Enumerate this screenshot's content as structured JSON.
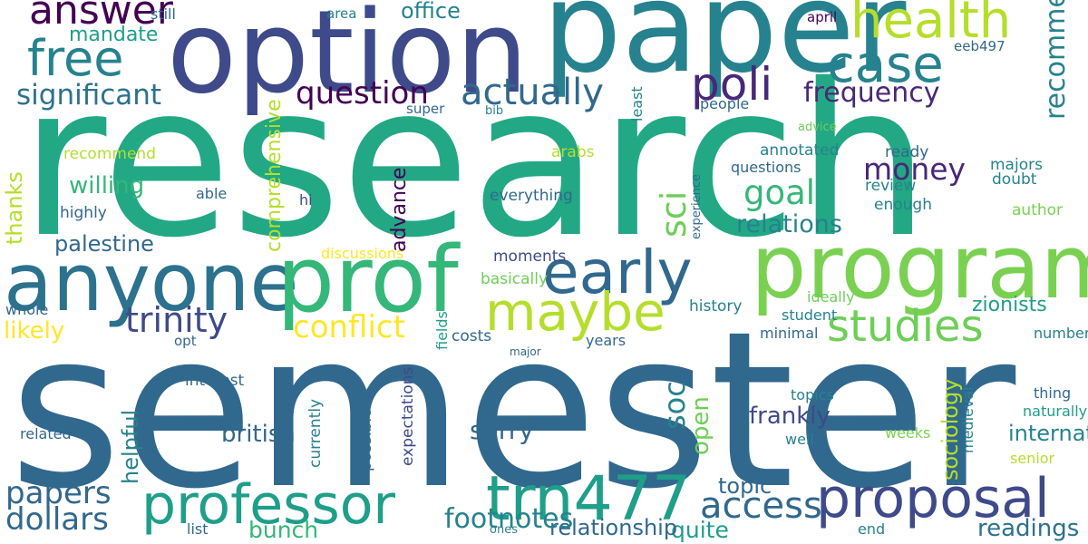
{
  "palette": {
    "dark_purple": "#440154",
    "indigo": "#3e4a89",
    "blue": "#31688e",
    "teal": "#26828e",
    "teal_green": "#1f9e89",
    "green": "#35b779",
    "light_green": "#6ece58",
    "yellow_green": "#b5de2b",
    "yellow": "#fde725"
  },
  "words": [
    {
      "text": "research",
      "color": "#22a884"
    },
    {
      "text": "semester",
      "color": "#31688e"
    },
    {
      "text": "paper",
      "color": "#26828e"
    },
    {
      "text": "option",
      "color": "#3e4a89"
    },
    {
      "text": "program",
      "color": "#7ad151"
    },
    {
      "text": "anyone",
      "color": "#2c728e"
    },
    {
      "text": "prof",
      "color": "#35b779"
    },
    {
      "text": "professor",
      "color": "#1f9e89"
    },
    {
      "text": "trn477",
      "color": "#1f9e89"
    },
    {
      "text": "proposal",
      "color": "#3e4a89"
    },
    {
      "text": "early",
      "color": "#31688e"
    },
    {
      "text": "maybe",
      "color": "#b5de2b"
    },
    {
      "text": "health",
      "color": "#b5de2b"
    },
    {
      "text": "case",
      "color": "#26828e"
    },
    {
      "text": "free",
      "color": "#26828e"
    },
    {
      "text": "answer",
      "color": "#440154"
    },
    {
      "text": "studies",
      "color": "#6ece58"
    },
    {
      "text": "poli",
      "color": "#482878"
    },
    {
      "text": "actually",
      "color": "#31688e"
    },
    {
      "text": "question",
      "color": "#440154"
    },
    {
      "text": "trinity",
      "color": "#3e4a89"
    },
    {
      "text": "significant",
      "color": "#2c728e"
    },
    {
      "text": "conflict",
      "color": "#fde725"
    },
    {
      "text": "money",
      "color": "#482878"
    },
    {
      "text": "goal",
      "color": "#35b779"
    },
    {
      "text": "frequency",
      "color": "#482878"
    },
    {
      "text": "access",
      "color": "#31688e"
    },
    {
      "text": "sorry",
      "color": "#31688e"
    },
    {
      "text": "papers",
      "color": "#31688e"
    },
    {
      "text": "dollars",
      "color": "#31688e"
    },
    {
      "text": "relations",
      "color": "#26828e"
    },
    {
      "text": "willing",
      "color": "#35b779"
    },
    {
      "text": "likely",
      "color": "#fde725"
    },
    {
      "text": "frankly",
      "color": "#3e4a89"
    },
    {
      "text": "palestine",
      "color": "#31688e"
    },
    {
      "text": "bunch",
      "color": "#35b779"
    },
    {
      "text": "readings",
      "color": "#2c728e"
    },
    {
      "text": "quite",
      "color": "#1f9e89"
    },
    {
      "text": "topic",
      "color": "#31688e"
    },
    {
      "text": "relationship",
      "color": "#31688e"
    },
    {
      "text": "zionists",
      "color": "#1f9e89"
    },
    {
      "text": "international",
      "color": "#26828e"
    },
    {
      "text": "british",
      "color": "#31688e"
    },
    {
      "text": "footnotes",
      "color": "#26828e"
    },
    {
      "text": "office",
      "color": "#26828e"
    },
    {
      "text": "mandate",
      "color": "#1f9e89"
    },
    {
      "text": "recommend",
      "color": "#b5de2b"
    },
    {
      "text": "highly",
      "color": "#31688e"
    },
    {
      "text": "able",
      "color": "#31688e"
    },
    {
      "text": "hi",
      "color": "#3e4a89"
    },
    {
      "text": "everything",
      "color": "#31688e"
    },
    {
      "text": "moments",
      "color": "#3e4a89"
    },
    {
      "text": "basically",
      "color": "#6ece58"
    },
    {
      "text": "discussions",
      "color": "#fde725"
    },
    {
      "text": "arabs",
      "color": "#b5de2b"
    },
    {
      "text": "annotated",
      "color": "#26828e"
    },
    {
      "text": "questions",
      "color": "#31688e"
    },
    {
      "text": "review",
      "color": "#26828e"
    },
    {
      "text": "ready",
      "color": "#31688e"
    },
    {
      "text": "majors",
      "color": "#26828e"
    },
    {
      "text": "doubt",
      "color": "#26828e"
    },
    {
      "text": "enough",
      "color": "#26828e"
    },
    {
      "text": "author",
      "color": "#7ad151"
    },
    {
      "text": "ideally",
      "color": "#6ece58"
    },
    {
      "text": "history",
      "color": "#26828e"
    },
    {
      "text": "student",
      "color": "#26828e"
    },
    {
      "text": "minimal",
      "color": "#31688e"
    },
    {
      "text": "number",
      "color": "#26828e"
    },
    {
      "text": "costs",
      "color": "#31688e"
    },
    {
      "text": "years",
      "color": "#31688e"
    },
    {
      "text": "whole",
      "color": "#31688e"
    },
    {
      "text": "opt",
      "color": "#31688e"
    },
    {
      "text": "interest",
      "color": "#31688e"
    },
    {
      "text": "topics",
      "color": "#26828e"
    },
    {
      "text": "well",
      "color": "#26828e"
    },
    {
      "text": "weeks",
      "color": "#7ad151"
    },
    {
      "text": "thing",
      "color": "#31688e"
    },
    {
      "text": "naturally",
      "color": "#1f9e89"
    },
    {
      "text": "senior",
      "color": "#b5de2b"
    },
    {
      "text": "related",
      "color": "#31688e"
    },
    {
      "text": "list",
      "color": "#31688e"
    },
    {
      "text": "ones",
      "color": "#26828e"
    },
    {
      "text": "end",
      "color": "#26828e"
    },
    {
      "text": "still",
      "color": "#31688e"
    },
    {
      "text": "area",
      "color": "#26828e"
    },
    {
      "text": "april",
      "color": "#440154"
    },
    {
      "text": "eeb497",
      "color": "#31688e"
    },
    {
      "text": "super",
      "color": "#31688e"
    },
    {
      "text": "bib",
      "color": "#26828e"
    },
    {
      "text": "people",
      "color": "#31688e"
    },
    {
      "text": "advice",
      "color": "#6ece58"
    },
    {
      "text": "major",
      "color": "#31688e"
    },
    {
      "text": "recommendations",
      "color": "#26828e"
    },
    {
      "text": "sci",
      "color": "#6ece58"
    },
    {
      "text": "soc",
      "color": "#26828e"
    },
    {
      "text": "sociology",
      "color": "#b5de2b"
    },
    {
      "text": "open",
      "color": "#6ece58"
    },
    {
      "text": "comprehensive",
      "color": "#b5de2b"
    },
    {
      "text": "helpful",
      "color": "#26828e"
    },
    {
      "text": "advance",
      "color": "#440154"
    },
    {
      "text": "thanks",
      "color": "#b5de2b"
    },
    {
      "text": "least",
      "color": "#26828e"
    },
    {
      "text": "experience",
      "color": "#31688e"
    },
    {
      "text": "fields",
      "color": "#1f9e89"
    },
    {
      "text": "expectations",
      "color": "#3e4a89"
    },
    {
      "text": "possible",
      "color": "#31688e"
    },
    {
      "text": "currently",
      "color": "#26828e"
    },
    {
      "text": "medieval",
      "color": "#26828e"
    }
  ]
}
